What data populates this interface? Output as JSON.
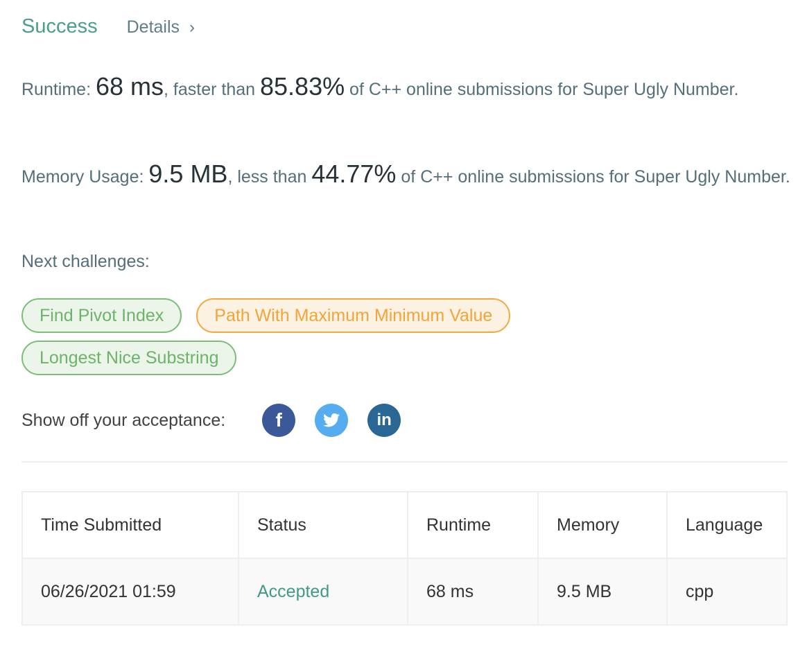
{
  "header": {
    "status": "Success",
    "details_label": "Details",
    "details_chevron": "›"
  },
  "runtime": {
    "label": "Runtime: ",
    "value": "68 ms",
    "mid": ", faster than ",
    "percent": "85.83%",
    "tail": " of C++ online submissions for Super Ugly Number."
  },
  "memory": {
    "label": "Memory Usage: ",
    "value": "9.5 MB",
    "mid": ", less than ",
    "percent": "44.77%",
    "tail": " of C++ online submissions for Super Ugly Number."
  },
  "next_challenges": {
    "label": "Next challenges:",
    "items": [
      {
        "label": "Find Pivot Index",
        "difficulty": "easy",
        "color": "#6db36a"
      },
      {
        "label": "Path With Maximum Minimum Value",
        "difficulty": "medium",
        "color": "#f3a438"
      },
      {
        "label": "Longest Nice Substring",
        "difficulty": "easy",
        "color": "#6db36a"
      }
    ]
  },
  "share": {
    "label": "Show off your acceptance:",
    "icons": [
      "facebook-icon",
      "twitter-icon",
      "linkedin-icon"
    ],
    "facebook_glyph": "f",
    "linkedin_glyph": "in"
  },
  "table": {
    "headers": [
      "Time Submitted",
      "Status",
      "Runtime",
      "Memory",
      "Language"
    ],
    "rows": [
      [
        "06/26/2021 01:59",
        "Accepted",
        "68 ms",
        "9.5 MB",
        "cpp"
      ]
    ]
  }
}
